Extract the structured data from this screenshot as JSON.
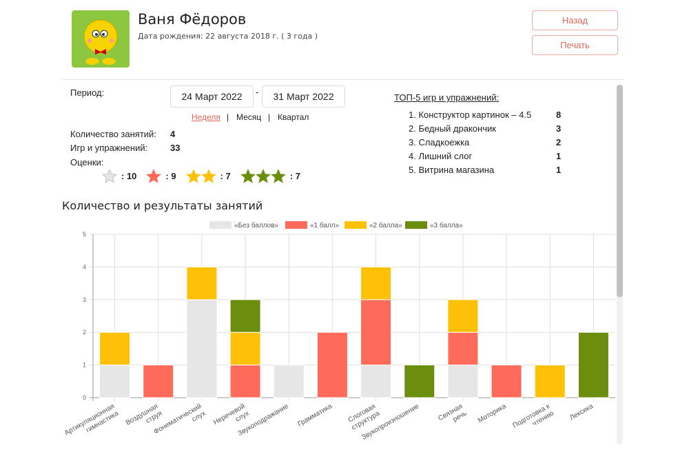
{
  "profile": {
    "name": "Ваня Фёдоров",
    "dob": "Дата рождения: 22 августа 2018 г. ( 3 года )",
    "avatar_icon": "yellow-smiley-bowtie"
  },
  "buttons": {
    "back": "Назад",
    "print": "Печать"
  },
  "period": {
    "label": "Период:",
    "from": "24 Март 2022",
    "sep": "-",
    "to": "31 Март 2022",
    "options": [
      "Неделя",
      "Месяц",
      "Квартал"
    ],
    "selected": "Неделя"
  },
  "stats": {
    "sessions_label": "Количество занятий:",
    "sessions": "4",
    "games_label": "Игр и упражнений:",
    "games": "33",
    "grades_label": "Оценки:",
    "grades": [
      {
        "stars": 0,
        "count": ": 10"
      },
      {
        "stars": 1,
        "count": ": 9"
      },
      {
        "stars": 2,
        "count": ": 7"
      },
      {
        "stars": 3,
        "count": ": 7"
      }
    ]
  },
  "top5": {
    "title": "ТОП-5 игр и упражнений:",
    "items": [
      {
        "t": "1. Конструктор картинок – 4.5",
        "c": "8"
      },
      {
        "t": "2. Бедный дракончик",
        "c": "3"
      },
      {
        "t": "3. Сладкоежка",
        "c": "2"
      },
      {
        "t": "4. Лишний слог",
        "c": "1"
      },
      {
        "t": "5. Витрина магазина",
        "c": "1"
      }
    ]
  },
  "colors": {
    "none": "#e6e6e6",
    "one": "#ff6b5b",
    "two": "#ffc107",
    "three": "#6b8e0e",
    "accent": "#e0675a"
  },
  "chart_data": {
    "type": "bar",
    "stacked": true,
    "title": "Количество и результаты занятий",
    "legend_position": "top",
    "grid": true,
    "ylim": [
      0,
      5
    ],
    "yticks": [
      0,
      1,
      2,
      3,
      4,
      5
    ],
    "categories": [
      [
        "Артикуляционная",
        "гимнастика"
      ],
      [
        "Воздушная",
        "струя"
      ],
      [
        "Фонематический",
        "слух"
      ],
      [
        "Неречевой",
        "слух"
      ],
      [
        "Звукоподражание"
      ],
      [
        "Грамматика"
      ],
      [
        "Слоговая",
        "структура"
      ],
      [
        "Звукопроизношение"
      ],
      [
        "Связная",
        "речь"
      ],
      [
        "Моторика"
      ],
      [
        "Подготовка к",
        "чтению"
      ],
      [
        "Лексика"
      ]
    ],
    "series": [
      {
        "name": "«Без баллов»",
        "color": "#e6e6e6",
        "values": [
          1,
          0,
          3,
          0,
          1,
          0,
          1,
          0,
          1,
          0,
          0,
          0
        ]
      },
      {
        "name": "«1 балл»",
        "color": "#ff6b5b",
        "values": [
          0,
          1,
          0,
          1,
          0,
          2,
          2,
          0,
          1,
          1,
          0,
          0
        ]
      },
      {
        "name": "«2 балла»",
        "color": "#ffc107",
        "values": [
          1,
          0,
          1,
          1,
          0,
          0,
          1,
          0,
          1,
          0,
          1,
          0
        ]
      },
      {
        "name": "«3 балла»",
        "color": "#6b8e0e",
        "values": [
          0,
          0,
          0,
          1,
          0,
          0,
          0,
          1,
          0,
          0,
          0,
          2
        ]
      }
    ]
  }
}
